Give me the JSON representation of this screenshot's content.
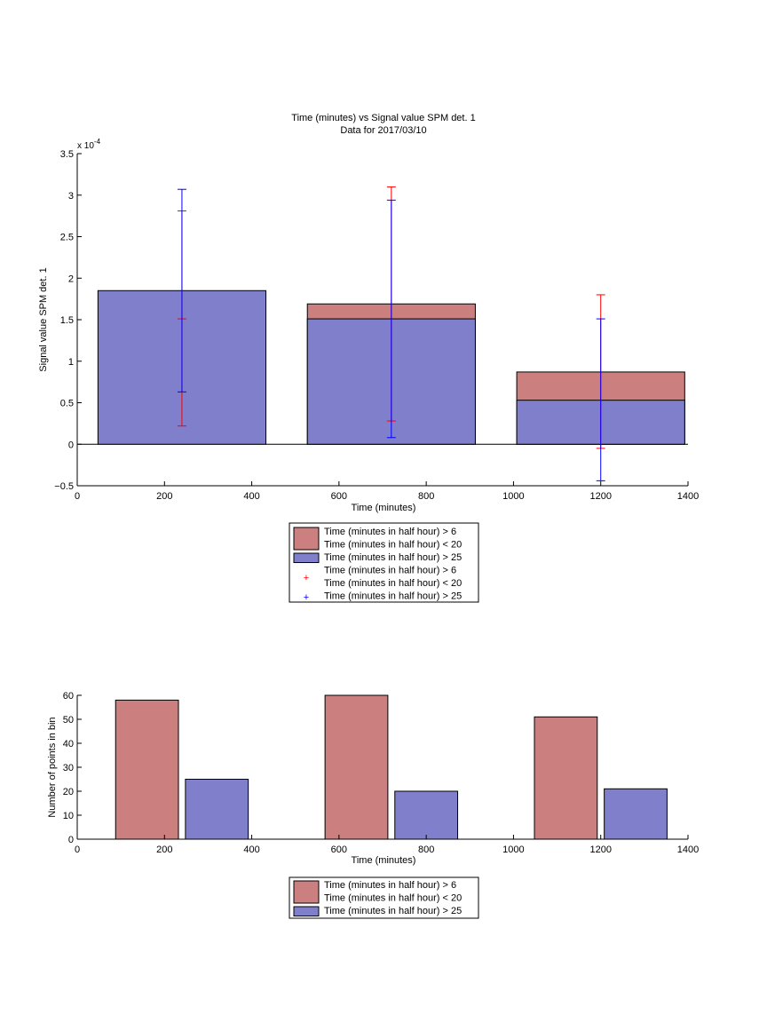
{
  "chart_data": [
    {
      "type": "bar",
      "title": "Time (minutes) vs Signal value SPM det. 1",
      "subtitle": "Data for 2017/03/10",
      "xlabel": "Time (minutes)",
      "ylabel": "Signal value SPM det. 1",
      "y_exponent": "x 10",
      "y_exponent_power": "-4",
      "xlim": [
        0,
        1400
      ],
      "ylim": [
        -0.5,
        3.5
      ],
      "y_scale": 0.0001,
      "x_ticks": [
        "0",
        "200",
        "400",
        "600",
        "800",
        "1000",
        "1200",
        "1400"
      ],
      "y_ticks": [
        "−0.5",
        "0",
        "0.5",
        "1",
        "1.5",
        "2",
        "2.5",
        "3",
        "3.5"
      ],
      "grid": false,
      "legend_position": "below",
      "categories": [
        240,
        720,
        1200
      ],
      "series": [
        {
          "name": "Time (minutes in half hour) > 6\nTime (minutes in half hour) < 20",
          "color": "#cc7f7f",
          "values": [
            0,
            1.69,
            0.87
          ]
        },
        {
          "name": "Time (minutes in half hour) > 25",
          "color": "#7f7fcc",
          "values": [
            1.85,
            1.51,
            0.53
          ]
        }
      ],
      "error_bars": [
        {
          "name": "Time (minutes in half hour) > 6\nTime (minutes in half hour) < 20",
          "color": "#ff0000",
          "x": [
            240,
            720,
            1200
          ],
          "low": [
            0.22,
            0.28,
            -0.05
          ],
          "high": [
            2.81,
            3.1,
            1.8
          ],
          "mid": [
            1.51,
            null,
            null
          ]
        },
        {
          "name": "Time (minutes in half hour) > 25",
          "color": "#0000ff",
          "x": [
            240,
            720,
            1200
          ],
          "low": [
            0.63,
            0.08,
            -0.44
          ],
          "high": [
            3.07,
            2.94,
            1.51
          ]
        }
      ],
      "legend": [
        {
          "kind": "patch",
          "color": "#cc7f7f",
          "lines": [
            "Time (minutes in half hour) > 6",
            "Time (minutes in half hour) < 20"
          ]
        },
        {
          "kind": "patch",
          "color": "#7f7fcc",
          "lines": [
            "Time (minutes in half hour) > 25"
          ]
        },
        {
          "kind": "marker",
          "color": "#ff0000",
          "lines": [
            "Time (minutes in half hour) > 6",
            "Time (minutes in half hour) < 20"
          ]
        },
        {
          "kind": "marker",
          "color": "#0000ff",
          "lines": [
            "Time (minutes in half hour) > 25"
          ]
        }
      ]
    },
    {
      "type": "bar",
      "title": "",
      "xlabel": "Time (minutes)",
      "ylabel": "Number of points in bin",
      "xlim": [
        0,
        1400
      ],
      "ylim": [
        0,
        60
      ],
      "x_ticks": [
        "0",
        "200",
        "400",
        "600",
        "800",
        "1000",
        "1200",
        "1400"
      ],
      "y_ticks": [
        "0",
        "10",
        "20",
        "30",
        "40",
        "50",
        "60"
      ],
      "grid": false,
      "legend_position": "below",
      "categories": [
        240,
        720,
        1200
      ],
      "series": [
        {
          "name": "Time (minutes in half hour) > 6\nTime (minutes in half hour) < 20",
          "color": "#cc7f7f",
          "x": [
            160,
            640,
            1120
          ],
          "values": [
            58,
            60,
            51
          ]
        },
        {
          "name": "Time (minutes in half hour) > 25",
          "color": "#7f7fcc",
          "x": [
            320,
            800,
            1280
          ],
          "values": [
            25,
            20,
            21
          ]
        }
      ],
      "legend": [
        {
          "kind": "patch",
          "color": "#cc7f7f",
          "lines": [
            "Time (minutes in half hour) > 6",
            "Time (minutes in half hour) < 20"
          ]
        },
        {
          "kind": "patch",
          "color": "#7f7fcc",
          "lines": [
            "Time (minutes in half hour) > 25"
          ]
        }
      ]
    }
  ]
}
